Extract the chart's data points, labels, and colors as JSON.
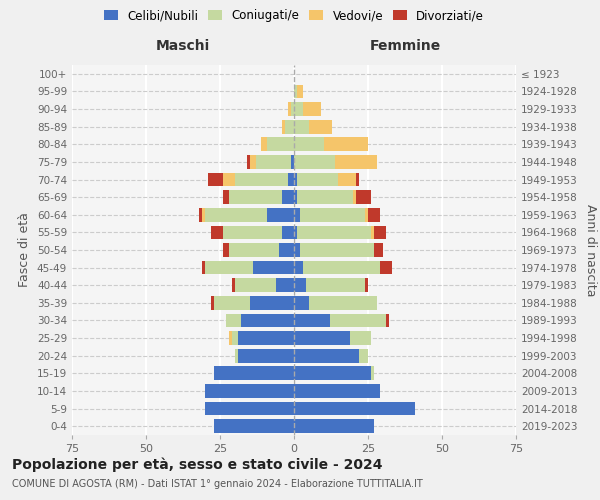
{
  "age_groups": [
    "0-4",
    "5-9",
    "10-14",
    "15-19",
    "20-24",
    "25-29",
    "30-34",
    "35-39",
    "40-44",
    "45-49",
    "50-54",
    "55-59",
    "60-64",
    "65-69",
    "70-74",
    "75-79",
    "80-84",
    "85-89",
    "90-94",
    "95-99",
    "100+"
  ],
  "birth_years": [
    "2019-2023",
    "2014-2018",
    "2009-2013",
    "2004-2008",
    "1999-2003",
    "1994-1998",
    "1989-1993",
    "1984-1988",
    "1979-1983",
    "1974-1978",
    "1969-1973",
    "1964-1968",
    "1959-1963",
    "1954-1958",
    "1949-1953",
    "1944-1948",
    "1939-1943",
    "1934-1938",
    "1929-1933",
    "1924-1928",
    "≤ 1923"
  ],
  "males": {
    "celibi": [
      27,
      30,
      30,
      27,
      19,
      19,
      18,
      15,
      6,
      14,
      5,
      4,
      9,
      4,
      2,
      1,
      0,
      0,
      0,
      0,
      0
    ],
    "coniugati": [
      0,
      0,
      0,
      0,
      1,
      2,
      5,
      12,
      14,
      16,
      17,
      20,
      21,
      18,
      18,
      12,
      9,
      3,
      1,
      0,
      0
    ],
    "vedovi": [
      0,
      0,
      0,
      0,
      0,
      1,
      0,
      0,
      0,
      0,
      0,
      0,
      1,
      0,
      4,
      2,
      2,
      1,
      1,
      0,
      0
    ],
    "divorziati": [
      0,
      0,
      0,
      0,
      0,
      0,
      0,
      1,
      1,
      1,
      2,
      4,
      1,
      2,
      5,
      1,
      0,
      0,
      0,
      0,
      0
    ]
  },
  "females": {
    "nubili": [
      27,
      41,
      29,
      26,
      22,
      19,
      12,
      5,
      4,
      3,
      2,
      1,
      2,
      1,
      1,
      0,
      0,
      0,
      0,
      0,
      0
    ],
    "coniugate": [
      0,
      0,
      0,
      1,
      3,
      7,
      19,
      23,
      20,
      26,
      25,
      25,
      22,
      19,
      14,
      14,
      10,
      5,
      3,
      1,
      0
    ],
    "vedove": [
      0,
      0,
      0,
      0,
      0,
      0,
      0,
      0,
      0,
      0,
      0,
      1,
      1,
      1,
      6,
      14,
      15,
      8,
      6,
      2,
      0
    ],
    "divorziate": [
      0,
      0,
      0,
      0,
      0,
      0,
      1,
      0,
      1,
      4,
      3,
      4,
      4,
      5,
      1,
      0,
      0,
      0,
      0,
      0,
      0
    ]
  },
  "colors": {
    "celibi": "#4472c4",
    "coniugati": "#c5d9a0",
    "vedovi": "#f5c56a",
    "divorziati": "#c0392b"
  },
  "title": "Popolazione per età, sesso e stato civile - 2024",
  "subtitle": "COMUNE DI AGOSTA (RM) - Dati ISTAT 1° gennaio 2024 - Elaborazione TUTTITALIA.IT",
  "xlabel_left": "Maschi",
  "xlabel_right": "Femmine",
  "ylabel_left": "Fasce di età",
  "ylabel_right": "Anni di nascita",
  "xlim": 75,
  "bg_color": "#f0f0f0",
  "plot_bg": "#f5f5f5"
}
